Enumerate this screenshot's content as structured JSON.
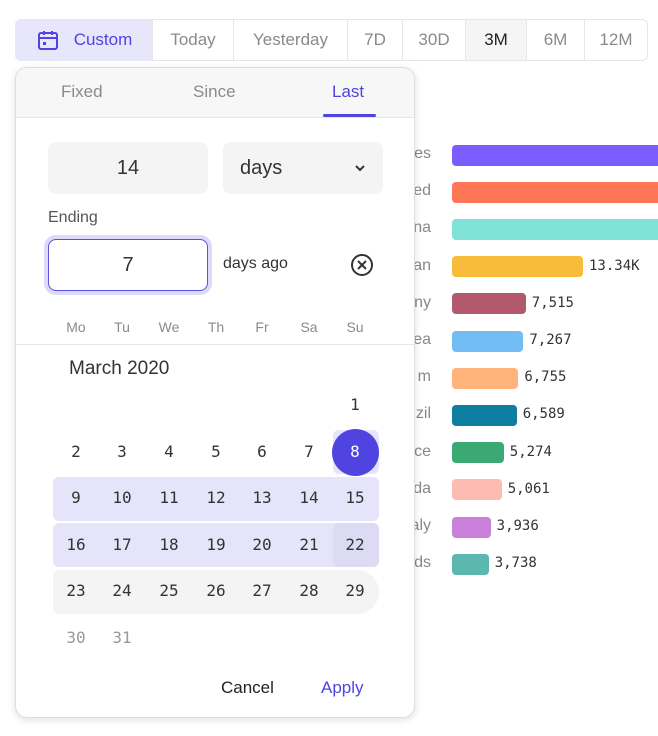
{
  "range_bar": {
    "items": [
      {
        "label": "Custom",
        "icon": "calendar-icon"
      },
      {
        "label": "Today"
      },
      {
        "label": "Yesterday"
      },
      {
        "label": "7D"
      },
      {
        "label": "30D"
      },
      {
        "label": "3M",
        "selected": true
      },
      {
        "label": "6M"
      },
      {
        "label": "12M"
      }
    ]
  },
  "picker": {
    "tabs": [
      {
        "label": "Fixed"
      },
      {
        "label": "Since"
      },
      {
        "label": "Last",
        "active": true
      }
    ],
    "count": "14",
    "unit": "days",
    "ending_label": "Ending",
    "ending_value": "7",
    "ending_suffix": "days ago",
    "weekdays": [
      "Mo",
      "Tu",
      "We",
      "Th",
      "Fr",
      "Sa",
      "Su"
    ],
    "month": "March 2020",
    "selected_start": 8,
    "selected_end": 22,
    "cancel": "Cancel",
    "apply": "Apply"
  },
  "chart_data": {
    "type": "bar",
    "orientation": "horizontal",
    "categories": [
      "es",
      "ed",
      "na",
      "an",
      "ny",
      "ea",
      "m",
      "zil",
      "ce",
      "da",
      "aly",
      "ds"
    ],
    "values": [
      null,
      null,
      null,
      13340,
      7515,
      7267,
      6755,
      6589,
      5274,
      5061,
      3936,
      3738
    ],
    "labels": [
      "",
      "",
      "",
      "13.34K",
      "7,515",
      "7,267",
      "6,755",
      "6,589",
      "5,274",
      "5,061",
      "3,936",
      "3,738"
    ],
    "colors": [
      "#7b5cff",
      "#ff7557",
      "#80e1d9",
      "#f8bc3b",
      "#b2596e",
      "#72bef4",
      "#ffb27a",
      "#0d7ea0",
      "#3ba974",
      "#febbb2",
      "#cb80dc",
      "#5bb7af"
    ]
  }
}
